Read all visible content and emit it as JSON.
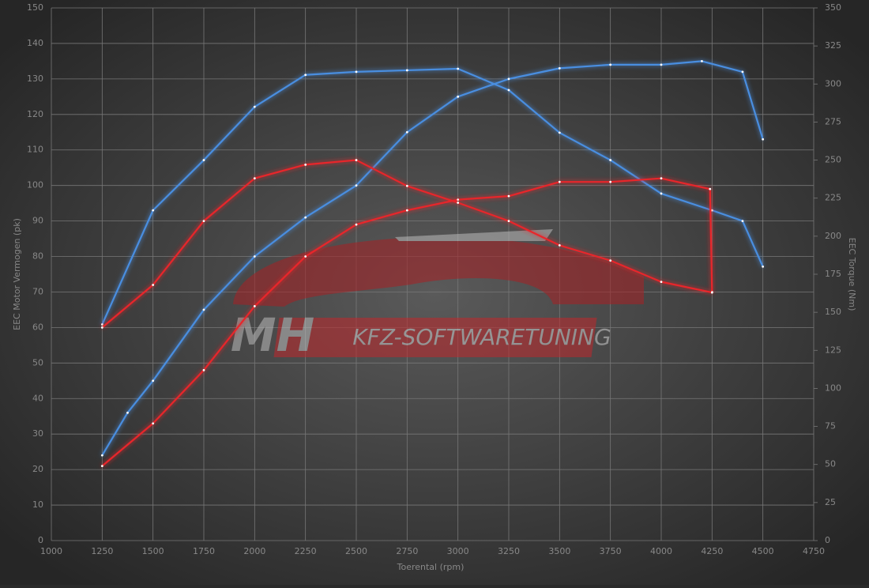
{
  "chart_data": {
    "type": "line",
    "x_label": "Toerental (rpm)",
    "y_label": "EEC Motor Vermogen (pk)",
    "y2_label": "EEC Torque (Nm)",
    "watermark": [
      "MH",
      "KFZ-SOFTWARETUNING"
    ],
    "xlim": [
      1000,
      4750
    ],
    "xticks": [
      1000,
      1250,
      1500,
      1750,
      2000,
      2250,
      2500,
      2750,
      3000,
      3250,
      3500,
      3750,
      4000,
      4250,
      4500,
      4750
    ],
    "ylim": [
      0,
      150
    ],
    "yticks": [
      0,
      10,
      20,
      30,
      40,
      50,
      60,
      70,
      80,
      90,
      100,
      110,
      120,
      130,
      140,
      150
    ],
    "y2lim": [
      0,
      350
    ],
    "y2ticks": [
      0,
      25,
      50,
      75,
      100,
      125,
      150,
      175,
      200,
      225,
      250,
      275,
      300,
      325,
      350
    ],
    "grid": true,
    "series": [
      {
        "color": "#4a8ee0",
        "axis": "y",
        "x": [
          1250,
          1375,
          1500,
          1750,
          2000,
          2250,
          2500,
          2750,
          3000,
          3250,
          3500,
          3750,
          4000,
          4200,
          4400,
          4500
        ],
        "values": [
          24,
          36,
          45,
          65,
          80,
          91,
          100,
          115,
          125,
          130,
          133,
          134,
          134,
          135,
          132,
          113
        ]
      },
      {
        "color": "#4a8ee0",
        "axis": "y2",
        "x": [
          1250,
          1500,
          1750,
          2000,
          2250,
          2500,
          2750,
          3000,
          3250,
          3500,
          3750,
          4000,
          4250,
          4400,
          4500
        ],
        "values": [
          142,
          217,
          250,
          285,
          306,
          308,
          309,
          310,
          296,
          268,
          250,
          228,
          217,
          210,
          180
        ]
      },
      {
        "color": "#e8262a",
        "axis": "y",
        "x": [
          1250,
          1500,
          1750,
          2000,
          2250,
          2500,
          2750,
          3000,
          3250,
          3500,
          3750,
          4000,
          4240,
          4250
        ],
        "values": [
          21,
          33,
          48,
          66,
          80,
          89,
          93,
          96,
          97,
          101,
          101,
          102,
          99,
          70
        ]
      },
      {
        "color": "#e8262a",
        "axis": "y2",
        "x": [
          1250,
          1500,
          1750,
          2000,
          2250,
          2500,
          2750,
          3000,
          3250,
          3500,
          3750,
          4000,
          4250
        ],
        "values": [
          140,
          168,
          210,
          238,
          247,
          250,
          233,
          222,
          210,
          194,
          184,
          170,
          163
        ]
      }
    ]
  }
}
